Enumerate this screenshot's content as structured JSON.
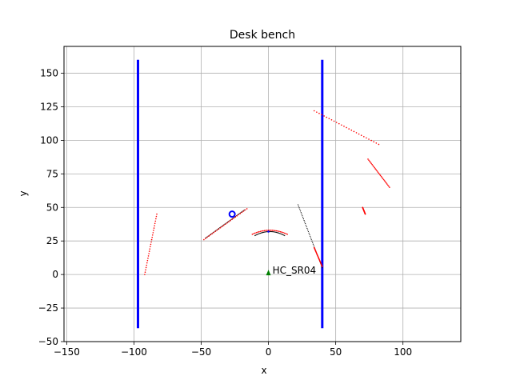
{
  "chart_data": {
    "type": "scatter",
    "title": "Desk bench",
    "xlabel": "x",
    "ylabel": "y",
    "xlim": [
      -152,
      143
    ],
    "ylim": [
      -50,
      170
    ],
    "xticks": [
      -150,
      -100,
      -50,
      0,
      50,
      100
    ],
    "yticks": [
      -50,
      -25,
      0,
      25,
      50,
      75,
      100,
      125,
      150
    ],
    "grid": true,
    "colors": {
      "walls": "#0000ff",
      "red_points": "#ff0000",
      "black_points": "#000000",
      "sensor": "#008000"
    },
    "walls": [
      {
        "x": -97,
        "y": [
          -40,
          160
        ]
      },
      {
        "x": 40,
        "y": [
          -40,
          160
        ]
      }
    ],
    "red_segments": [
      {
        "from": [
          -92,
          0
        ],
        "to": [
          -83,
          45
        ]
      },
      {
        "from": [
          -48,
          26
        ],
        "to": [
          -16,
          49
        ]
      },
      {
        "from": [
          -12,
          30
        ],
        "to": [
          14,
          30
        ],
        "peak": 33
      },
      {
        "from": [
          34,
          20
        ],
        "to": [
          40,
          6
        ]
      },
      {
        "from": [
          34,
          122
        ],
        "to": [
          82,
          97
        ]
      },
      {
        "from": [
          74,
          86
        ],
        "to": [
          90,
          65
        ]
      },
      {
        "from": [
          70,
          50
        ],
        "to": [
          72,
          45
        ]
      }
    ],
    "black_segments": [
      {
        "from": [
          -47,
          27
        ],
        "to": [
          -18,
          48
        ]
      },
      {
        "from": [
          -10,
          29
        ],
        "to": [
          12,
          29
        ],
        "peak": 32
      },
      {
        "from": [
          22,
          52
        ],
        "to": [
          40,
          5
        ]
      }
    ],
    "circle_marker": {
      "x": -27,
      "y": 45
    },
    "center_point": {
      "x": 0,
      "y": 32
    },
    "sensor": {
      "x": 0,
      "y": 0,
      "label": "HC_SR04"
    }
  }
}
